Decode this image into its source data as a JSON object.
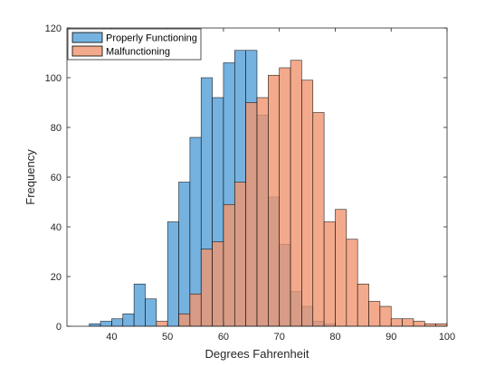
{
  "chart_data": {
    "type": "bar",
    "title": "",
    "xlabel": "Degrees Fahrenheit",
    "ylabel": "Frequency",
    "xlim": [
      32,
      100
    ],
    "ylim": [
      0,
      120
    ],
    "xticks": [
      40,
      50,
      60,
      70,
      80,
      90,
      100
    ],
    "yticks": [
      0,
      20,
      40,
      60,
      80,
      100,
      120
    ],
    "bin_width": 2,
    "grid": false,
    "legend_position": "top-left",
    "series": [
      {
        "name": "Properly Functioning",
        "color": "#5da5da",
        "bin_starts": [
          36,
          38,
          40,
          42,
          44,
          46,
          48,
          50,
          52,
          54,
          56,
          58,
          60,
          62,
          64,
          66,
          68,
          70,
          72,
          74,
          76,
          78
        ],
        "values": [
          1,
          2,
          3,
          5,
          17,
          11,
          0,
          42,
          58,
          76,
          100,
          92,
          106,
          111,
          111,
          85,
          52,
          33,
          14,
          8,
          2,
          1
        ]
      },
      {
        "name": "Malfunctioning",
        "color": "#f0956f",
        "bin_starts": [
          48,
          50,
          52,
          54,
          56,
          58,
          60,
          62,
          64,
          66,
          68,
          70,
          72,
          74,
          76,
          78,
          80,
          82,
          84,
          86,
          88,
          90,
          92,
          94,
          96,
          98
        ],
        "values": [
          2,
          0,
          5,
          13,
          31,
          34,
          49,
          58,
          90,
          92,
          101,
          104,
          107,
          99,
          86,
          42,
          47,
          35,
          17,
          10,
          8,
          3,
          3,
          2,
          1,
          1
        ]
      }
    ]
  }
}
